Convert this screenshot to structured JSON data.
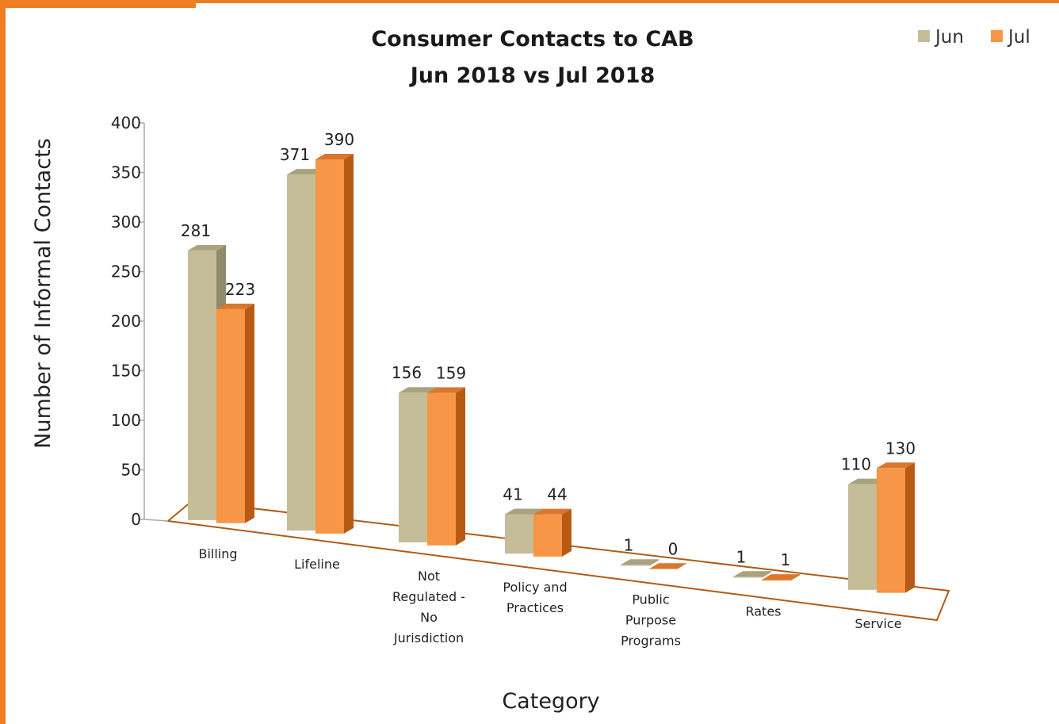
{
  "chart_data": {
    "type": "bar",
    "title": "Consumer Contacts to CAB",
    "subtitle": "Jun 2018 vs Jul 2018",
    "xlabel": "Category",
    "ylabel": "Number of Informal Contacts",
    "ylim": [
      0,
      400
    ],
    "yticks": [
      "0",
      "50",
      "100",
      "150",
      "200",
      "250",
      "300",
      "350",
      "400"
    ],
    "categories": [
      [
        "Billing"
      ],
      [
        "Lifeline"
      ],
      [
        "Not",
        "Regulated -",
        "No",
        "Jurisdiction"
      ],
      [
        "Policy and",
        "Practices"
      ],
      [
        "Public",
        "Purpose",
        "Programs"
      ],
      [
        "Rates"
      ],
      [
        "Service"
      ]
    ],
    "series": [
      {
        "name": "Jun",
        "values": [
          281,
          371,
          156,
          41,
          1,
          1,
          110
        ],
        "color": "#c4bd97",
        "side": "#8f8a6c",
        "top": "#a8a27e"
      },
      {
        "name": "Jul",
        "values": [
          223,
          390,
          159,
          44,
          0,
          1,
          130
        ],
        "color": "#f79646",
        "side": "#b85a14",
        "top": "#d9772e"
      }
    ],
    "legend_position": "top-right",
    "grid": false
  }
}
